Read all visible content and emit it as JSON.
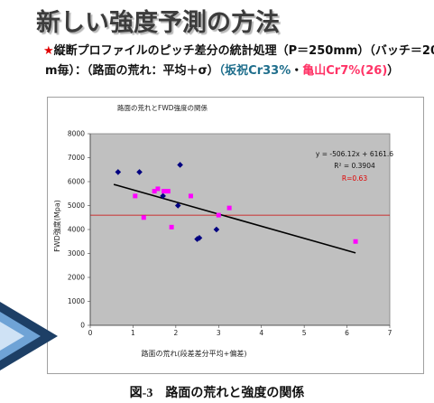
{
  "slide": {
    "title": "新しい強度予測の方法",
    "subtitle": {
      "line1": {
        "star": "★",
        "text": "縦断プロファイルのピッチ差分の統計処理（P＝250mm）（バッチ＝20"
      },
      "line2": {
        "text_a": "m毎）：（路面の荒れ：平均＋σ）",
        "text_b": "（坂祝Cr33%",
        "text_c": "・",
        "text_d": "亀山Cr7%(26)",
        "text_e": "）"
      }
    },
    "caption": "図-3　路面の荒れと強度の関係"
  },
  "colors": {
    "star": "#e00000",
    "sakahogi": "#1f6e8c",
    "kameyama": "#ff3366",
    "body_text": "#111111",
    "plot_background": "#c0c0c0"
  },
  "chart_data": {
    "type": "scatter",
    "title": "路面の荒れとFWD強度の関係",
    "xlabel": "路面の荒れ(段差差分平均+偏差)",
    "ylabel": "FWD強度(Mpa)",
    "xlim": [
      0,
      7
    ],
    "ylim": [
      0,
      8000
    ],
    "xticks": [
      0,
      1,
      2,
      3,
      4,
      5,
      6,
      7
    ],
    "yticks": [
      0,
      1000,
      2000,
      3000,
      4000,
      5000,
      6000,
      7000,
      8000
    ],
    "grid": false,
    "legend": "none",
    "series": [
      {
        "marker": "diamond",
        "color": "#000080",
        "points": [
          [
            0.65,
            6400
          ],
          [
            1.15,
            6400
          ],
          [
            2.1,
            6700
          ],
          [
            2.05,
            5000
          ],
          [
            1.7,
            5400
          ],
          [
            2.55,
            3650
          ],
          [
            2.5,
            3600
          ],
          [
            2.95,
            4000
          ]
        ]
      },
      {
        "marker": "square",
        "color": "#ff00ff",
        "points": [
          [
            1.05,
            5400
          ],
          [
            1.25,
            4500
          ],
          [
            1.5,
            5600
          ],
          [
            1.58,
            5700
          ],
          [
            1.72,
            5600
          ],
          [
            1.82,
            5600
          ],
          [
            1.9,
            4100
          ],
          [
            2.35,
            5400
          ],
          [
            3.0,
            4600
          ],
          [
            3.25,
            4900
          ],
          [
            6.2,
            3500
          ]
        ]
      }
    ],
    "trendline": {
      "slope": -506.12,
      "intercept": 6161.6,
      "x_range": [
        0.55,
        6.2
      ],
      "color": "#000000"
    },
    "reference_line": {
      "y": 4600,
      "color": "#cc0000"
    },
    "annotations": [
      {
        "text": "y = -506.12x + 6161.6",
        "color": "#111111"
      },
      {
        "text": "R² = 0.3904",
        "color": "#111111"
      },
      {
        "text": "R=0.63",
        "color": "#e00000"
      }
    ]
  }
}
